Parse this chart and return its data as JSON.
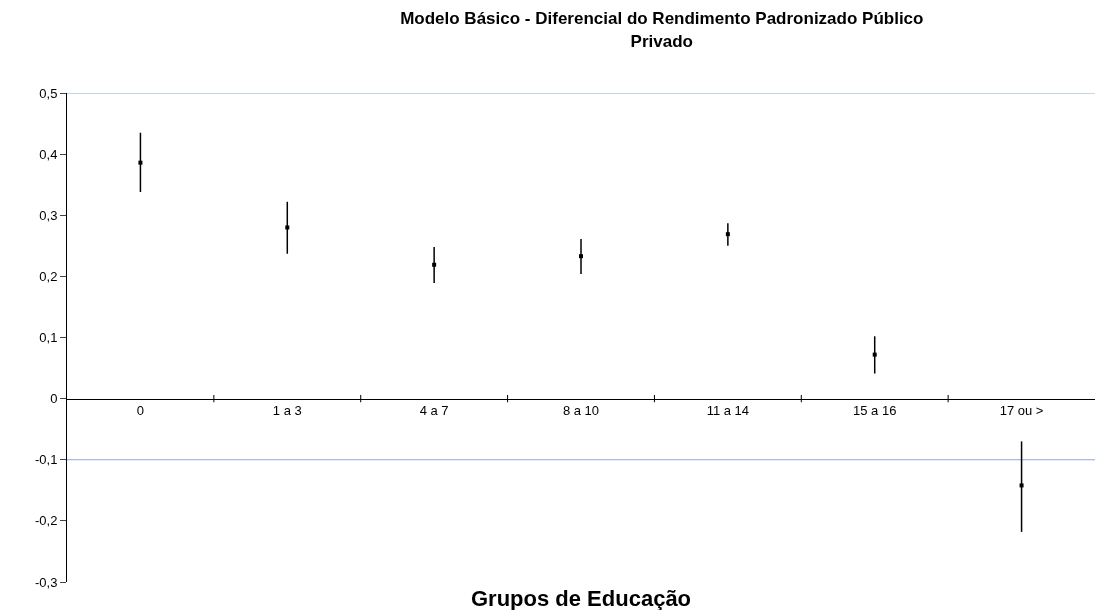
{
  "chart_data": {
    "type": "scatter",
    "title": "Modelo Básico - Diferencial do Rendimento Padronizado Público\nPrivado",
    "xlabel": "Grupos de Educação",
    "categories": [
      "0",
      "1 a 3",
      "4 a 7",
      "8 a 10",
      "11 a 14",
      "15 a 16",
      "17 ou >"
    ],
    "values": [
      0.386,
      0.28,
      0.219,
      0.233,
      0.269,
      0.072,
      -0.142
    ],
    "errors": [
      [
        0.338,
        0.435
      ],
      [
        0.237,
        0.322
      ],
      [
        0.189,
        0.248
      ],
      [
        0.204,
        0.261
      ],
      [
        0.25,
        0.287
      ],
      [
        0.041,
        0.102
      ],
      [
        -0.218,
        -0.07
      ]
    ],
    "color": "#000000",
    "marker": "square",
    "ylim": [
      -0.3,
      0.5
    ],
    "yticks": [
      {
        "value": -0.3,
        "label": "-0,3"
      },
      {
        "value": -0.2,
        "label": "-0,2"
      },
      {
        "value": -0.1,
        "label": "-0,1"
      },
      {
        "value": 0,
        "label": "0"
      },
      {
        "value": 0.1,
        "label": "0,1"
      },
      {
        "value": 0.2,
        "label": "0,2"
      },
      {
        "value": 0.3,
        "label": "0,3"
      },
      {
        "value": 0.4,
        "label": "0,4"
      },
      {
        "value": 0.5,
        "label": "0,5"
      }
    ],
    "ref_lines": [
      {
        "axis": "y",
        "value": 0.5,
        "label": null,
        "color": "#8eaadb"
      },
      {
        "axis": "y",
        "value": -0.1,
        "label": null,
        "color": "#8eaadb"
      }
    ],
    "grid": false,
    "legend": false
  }
}
